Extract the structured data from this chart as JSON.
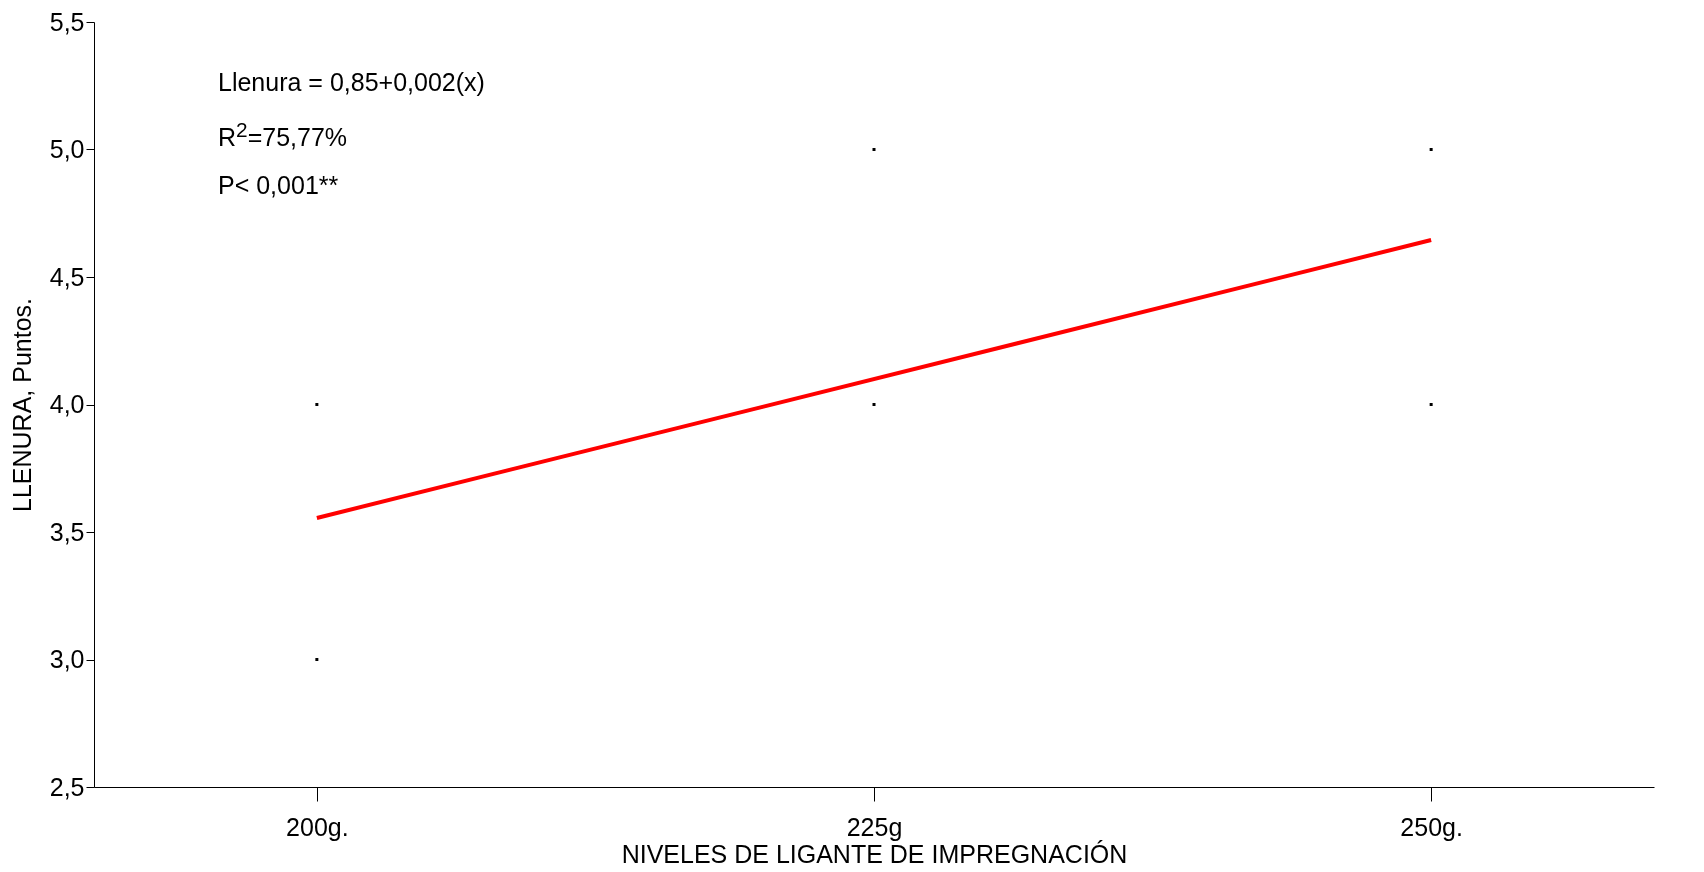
{
  "chart_data": {
    "type": "scatter",
    "xlabel": "NIVELES DE LIGANTE DE IMPREGNACIÓN",
    "ylabel": "LLENURA, Puntos.",
    "xlim": [
      190,
      260
    ],
    "xticks": [
      {
        "value": 200,
        "label": "200g."
      },
      {
        "value": 225,
        "label": "225g"
      },
      {
        "value": 250,
        "label": "250g."
      }
    ],
    "ylim": [
      2.5,
      5.5
    ],
    "yticks": [
      {
        "value": 2.5,
        "label": "2,5"
      },
      {
        "value": 3,
        "label": "3,0"
      },
      {
        "value": 3.5,
        "label": "3,5"
      },
      {
        "value": 4,
        "label": "4,0"
      },
      {
        "value": 4.5,
        "label": "4,5"
      },
      {
        "value": 5,
        "label": "5,0"
      },
      {
        "value": 5.5,
        "label": "5,5"
      }
    ],
    "series": [
      {
        "color": "#000000",
        "marker": "square",
        "x": [
          200,
          200,
          225,
          225,
          250,
          250
        ],
        "values": [
          4.0,
          3.0,
          5.0,
          4.0,
          5.0,
          4.0
        ]
      },
      {
        "type": "line",
        "color": "#ff0000",
        "line_style": "solid",
        "marker": "none",
        "x": [
          200,
          250
        ],
        "values": [
          3.555,
          4.645
        ]
      }
    ],
    "annotations": [
      "Llenura =  0,85+0,002(x)",
      "R$^{2}$=75,77%",
      "P< 0,001**"
    ],
    "grid": false
  }
}
